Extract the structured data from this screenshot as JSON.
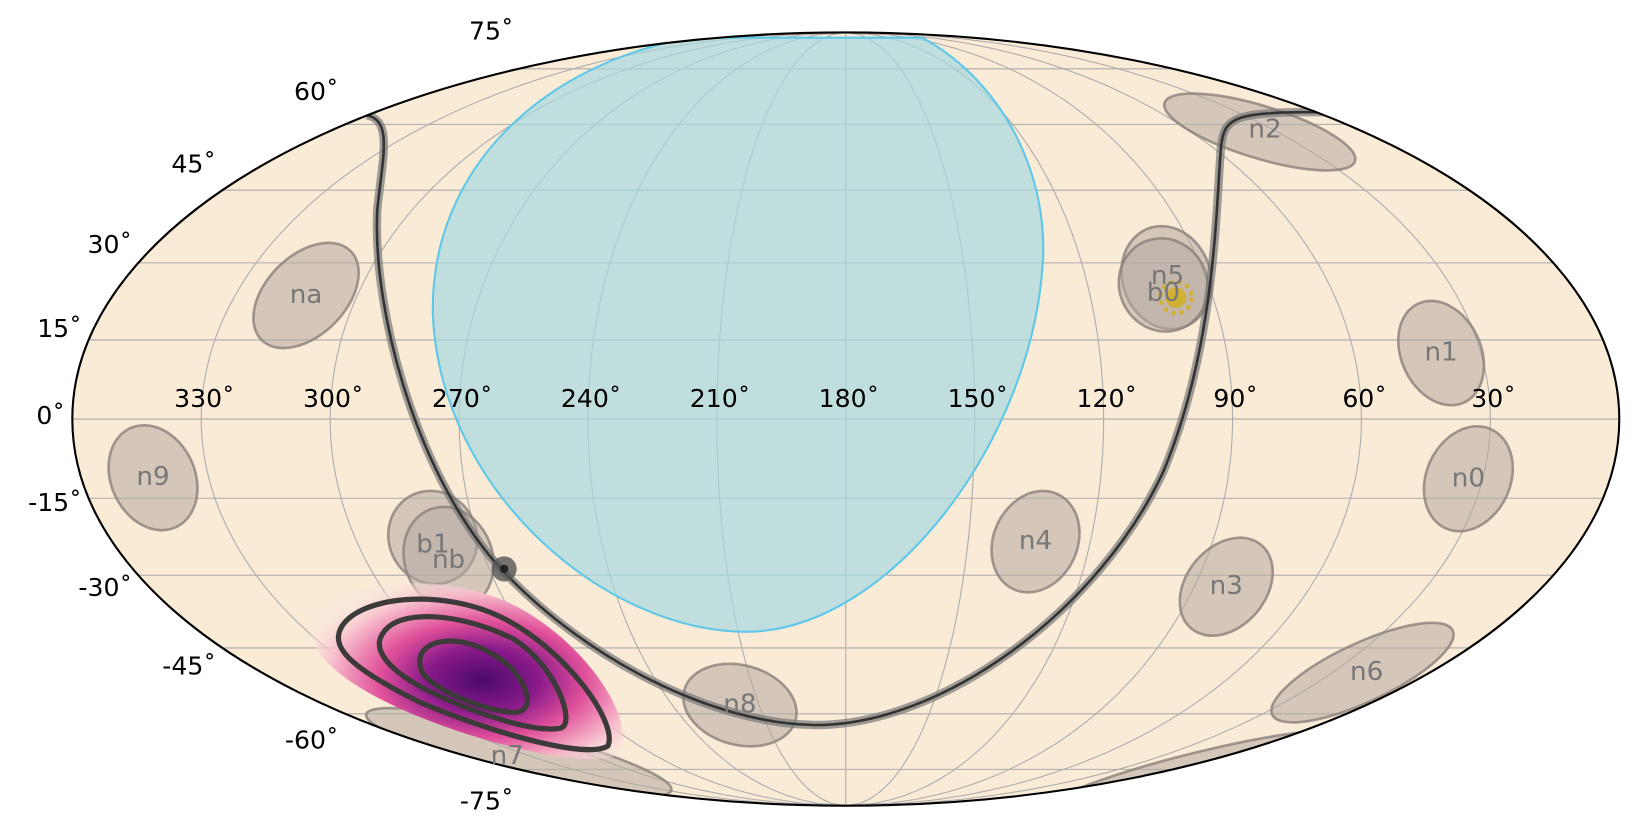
{
  "latitude_labels": [
    "75˚",
    "60˚",
    "45˚",
    "30˚",
    "15˚",
    "0˚",
    "-15˚",
    "-30˚",
    "-45˚",
    "-60˚",
    "-75˚"
  ],
  "longitude_labels": [
    "330˚",
    "300˚",
    "270˚",
    "240˚",
    "210˚",
    "180˚",
    "150˚",
    "120˚",
    "90˚",
    "60˚",
    "30˚"
  ],
  "detectors": [
    "na",
    "n2",
    "n5",
    "b0",
    "n1",
    "n9",
    "n0",
    "b1",
    "nb",
    "n4",
    "n3",
    "n6",
    "n8",
    "n7"
  ]
}
